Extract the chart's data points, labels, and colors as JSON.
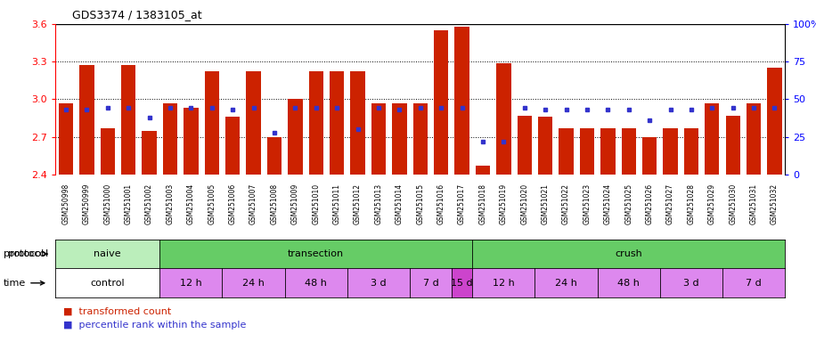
{
  "title": "GDS3374 / 1383105_at",
  "samples": [
    "GSM250998",
    "GSM250999",
    "GSM251000",
    "GSM251001",
    "GSM251002",
    "GSM251003",
    "GSM251004",
    "GSM251005",
    "GSM251006",
    "GSM251007",
    "GSM251008",
    "GSM251009",
    "GSM251010",
    "GSM251011",
    "GSM251012",
    "GSM251013",
    "GSM251014",
    "GSM251015",
    "GSM251016",
    "GSM251017",
    "GSM251018",
    "GSM251019",
    "GSM251020",
    "GSM251021",
    "GSM251022",
    "GSM251023",
    "GSM251024",
    "GSM251025",
    "GSM251026",
    "GSM251027",
    "GSM251028",
    "GSM251029",
    "GSM251030",
    "GSM251031",
    "GSM251032"
  ],
  "bar_values": [
    2.97,
    3.27,
    2.77,
    3.27,
    2.75,
    2.97,
    2.93,
    3.22,
    2.86,
    3.22,
    2.7,
    3.0,
    3.22,
    3.22,
    3.22,
    2.97,
    2.97,
    2.97,
    3.55,
    3.58,
    2.47,
    3.29,
    2.87,
    2.86,
    2.77,
    2.77,
    2.77,
    2.77,
    2.7,
    2.77,
    2.77,
    2.97,
    2.87,
    2.97,
    3.25
  ],
  "percentile_values": [
    43,
    43,
    44,
    44,
    38,
    44,
    44,
    44,
    43,
    44,
    28,
    44,
    44,
    44,
    30,
    44,
    43,
    44,
    44,
    44,
    22,
    22,
    44,
    43,
    43,
    43,
    43,
    43,
    36,
    43,
    43,
    44,
    44,
    44,
    44
  ],
  "ylim_left": [
    2.4,
    3.6
  ],
  "ylim_right": [
    0,
    100
  ],
  "yticks_left": [
    2.4,
    2.7,
    3.0,
    3.3,
    3.6
  ],
  "yticks_right": [
    0,
    25,
    50,
    75,
    100
  ],
  "ytick_labels_right": [
    "0",
    "25",
    "50",
    "75",
    "100%"
  ],
  "bar_color": "#cc2200",
  "percentile_color": "#3333cc",
  "protocol_groups": [
    {
      "label": "naive",
      "start": 0,
      "end": 4,
      "color": "#bbeebb"
    },
    {
      "label": "transection",
      "start": 5,
      "end": 19,
      "color": "#66cc66"
    },
    {
      "label": "crush",
      "start": 20,
      "end": 34,
      "color": "#66cc66"
    }
  ],
  "time_groups": [
    {
      "label": "control",
      "start": 0,
      "end": 4,
      "color": "#ffffff"
    },
    {
      "label": "12 h",
      "start": 5,
      "end": 7,
      "color": "#dd88ee"
    },
    {
      "label": "24 h",
      "start": 8,
      "end": 10,
      "color": "#dd88ee"
    },
    {
      "label": "48 h",
      "start": 11,
      "end": 13,
      "color": "#dd88ee"
    },
    {
      "label": "3 d",
      "start": 14,
      "end": 16,
      "color": "#dd88ee"
    },
    {
      "label": "7 d",
      "start": 17,
      "end": 18,
      "color": "#dd88ee"
    },
    {
      "label": "15 d",
      "start": 19,
      "end": 19,
      "color": "#cc44cc"
    },
    {
      "label": "12 h",
      "start": 20,
      "end": 22,
      "color": "#dd88ee"
    },
    {
      "label": "24 h",
      "start": 23,
      "end": 25,
      "color": "#dd88ee"
    },
    {
      "label": "48 h",
      "start": 26,
      "end": 28,
      "color": "#dd88ee"
    },
    {
      "label": "3 d",
      "start": 29,
      "end": 31,
      "color": "#dd88ee"
    },
    {
      "label": "7 d",
      "start": 32,
      "end": 34,
      "color": "#dd88ee"
    }
  ],
  "dotted_gridlines": [
    2.7,
    3.0,
    3.3
  ]
}
